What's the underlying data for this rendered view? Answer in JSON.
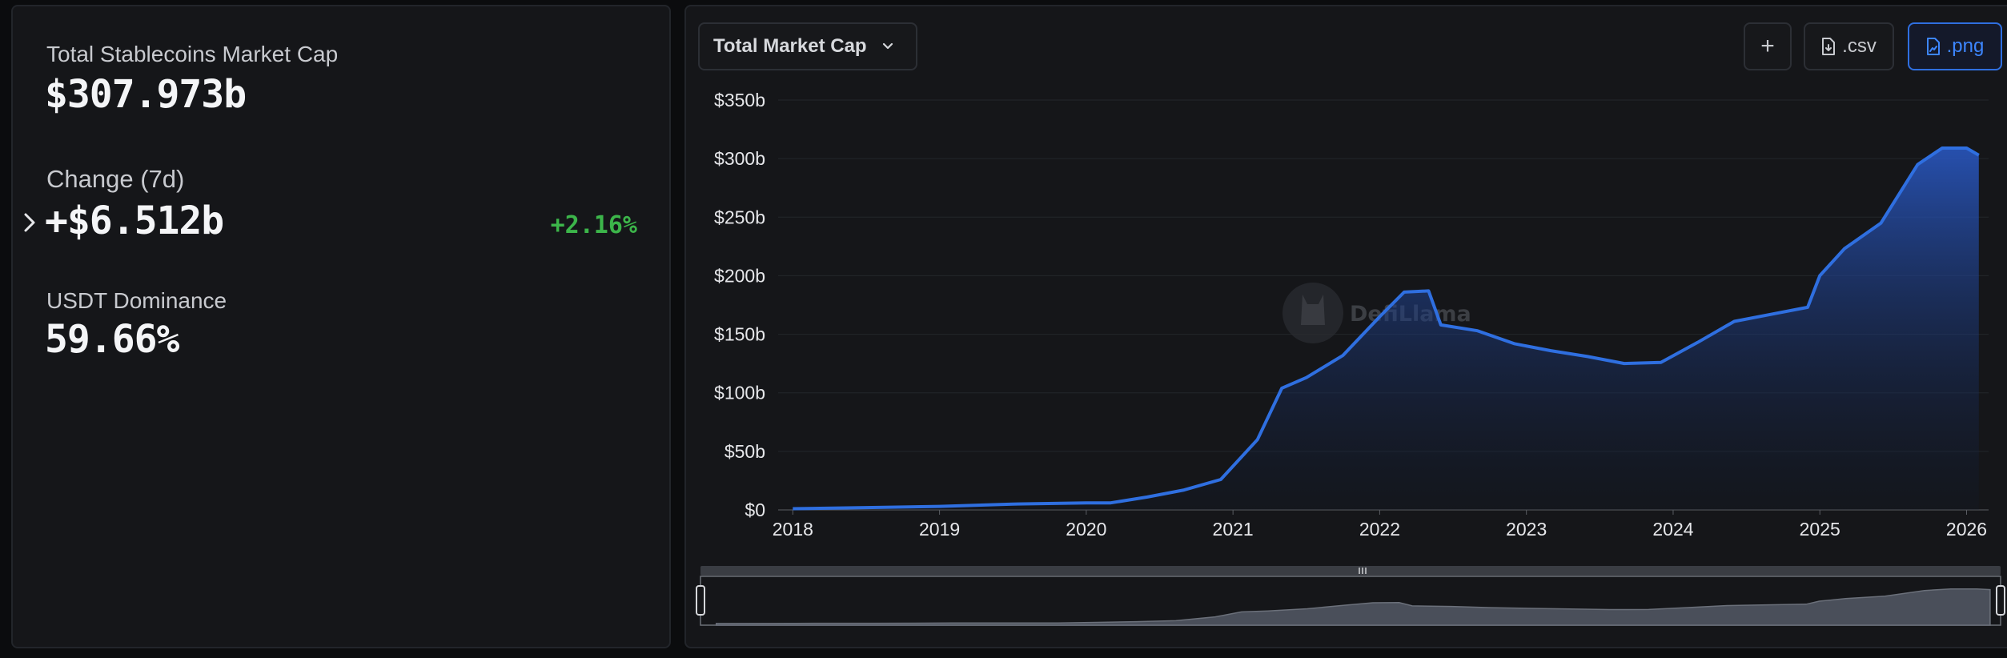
{
  "stats": {
    "market_cap_label": "Total Stablecoins Market Cap",
    "market_cap_value": "$307.973b",
    "change_label": "Change (7d)",
    "change_value": "+$6.512b",
    "change_percent": "+2.16%",
    "dominance_label": "USDT Dominance",
    "dominance_value": "59.66%"
  },
  "toolbar": {
    "metric_selected": "Total Market Cap",
    "add_label": "+",
    "csv_label": ".csv",
    "png_label": ".png"
  },
  "watermark": "DefiLlama",
  "colors": {
    "line": "#2f6fe0",
    "positive": "#3cb54a",
    "accent": "#3d86ff",
    "brush_fill": "#4a4f5a"
  },
  "icons": {
    "expand": "chevron-right-icon",
    "select": "chevron-down-icon",
    "csv": "file-download-icon",
    "png": "image-file-icon"
  },
  "chart_data": {
    "type": "area",
    "title": "",
    "xlabel": "",
    "ylabel": "",
    "ylim": [
      0,
      350
    ],
    "y_unit": "billions USD",
    "y_ticks": [
      "$0",
      "$50b",
      "$100b",
      "$150b",
      "$200b",
      "$250b",
      "$300b",
      "$350b"
    ],
    "x_ticks": [
      "2018",
      "2019",
      "2020",
      "2021",
      "2022",
      "2023",
      "2024",
      "2025",
      "2026"
    ],
    "grid": true,
    "legend": "none",
    "has_zoom_brush": true,
    "series": [
      {
        "x": [
          "2018-01",
          "2018-07",
          "2019-01",
          "2019-07",
          "2020-01",
          "2020-03",
          "2020-06",
          "2020-09",
          "2020-12",
          "2021-03",
          "2021-05",
          "2021-07",
          "2021-10",
          "2022-01",
          "2022-03",
          "2022-05",
          "2022-06",
          "2022-09",
          "2022-12",
          "2023-03",
          "2023-06",
          "2023-09",
          "2023-12",
          "2024-03",
          "2024-06",
          "2024-09",
          "2024-12",
          "2025-01",
          "2025-03",
          "2025-06",
          "2025-09",
          "2025-11",
          "2026-01",
          "2026-02"
        ],
        "values": [
          1,
          2,
          3,
          5,
          6,
          6,
          11,
          17,
          26,
          60,
          104,
          113,
          132,
          165,
          186,
          187,
          158,
          153,
          142,
          136,
          131,
          125,
          126,
          143,
          161,
          167,
          173,
          200,
          223,
          245,
          295,
          309,
          309,
          303
        ]
      }
    ]
  }
}
